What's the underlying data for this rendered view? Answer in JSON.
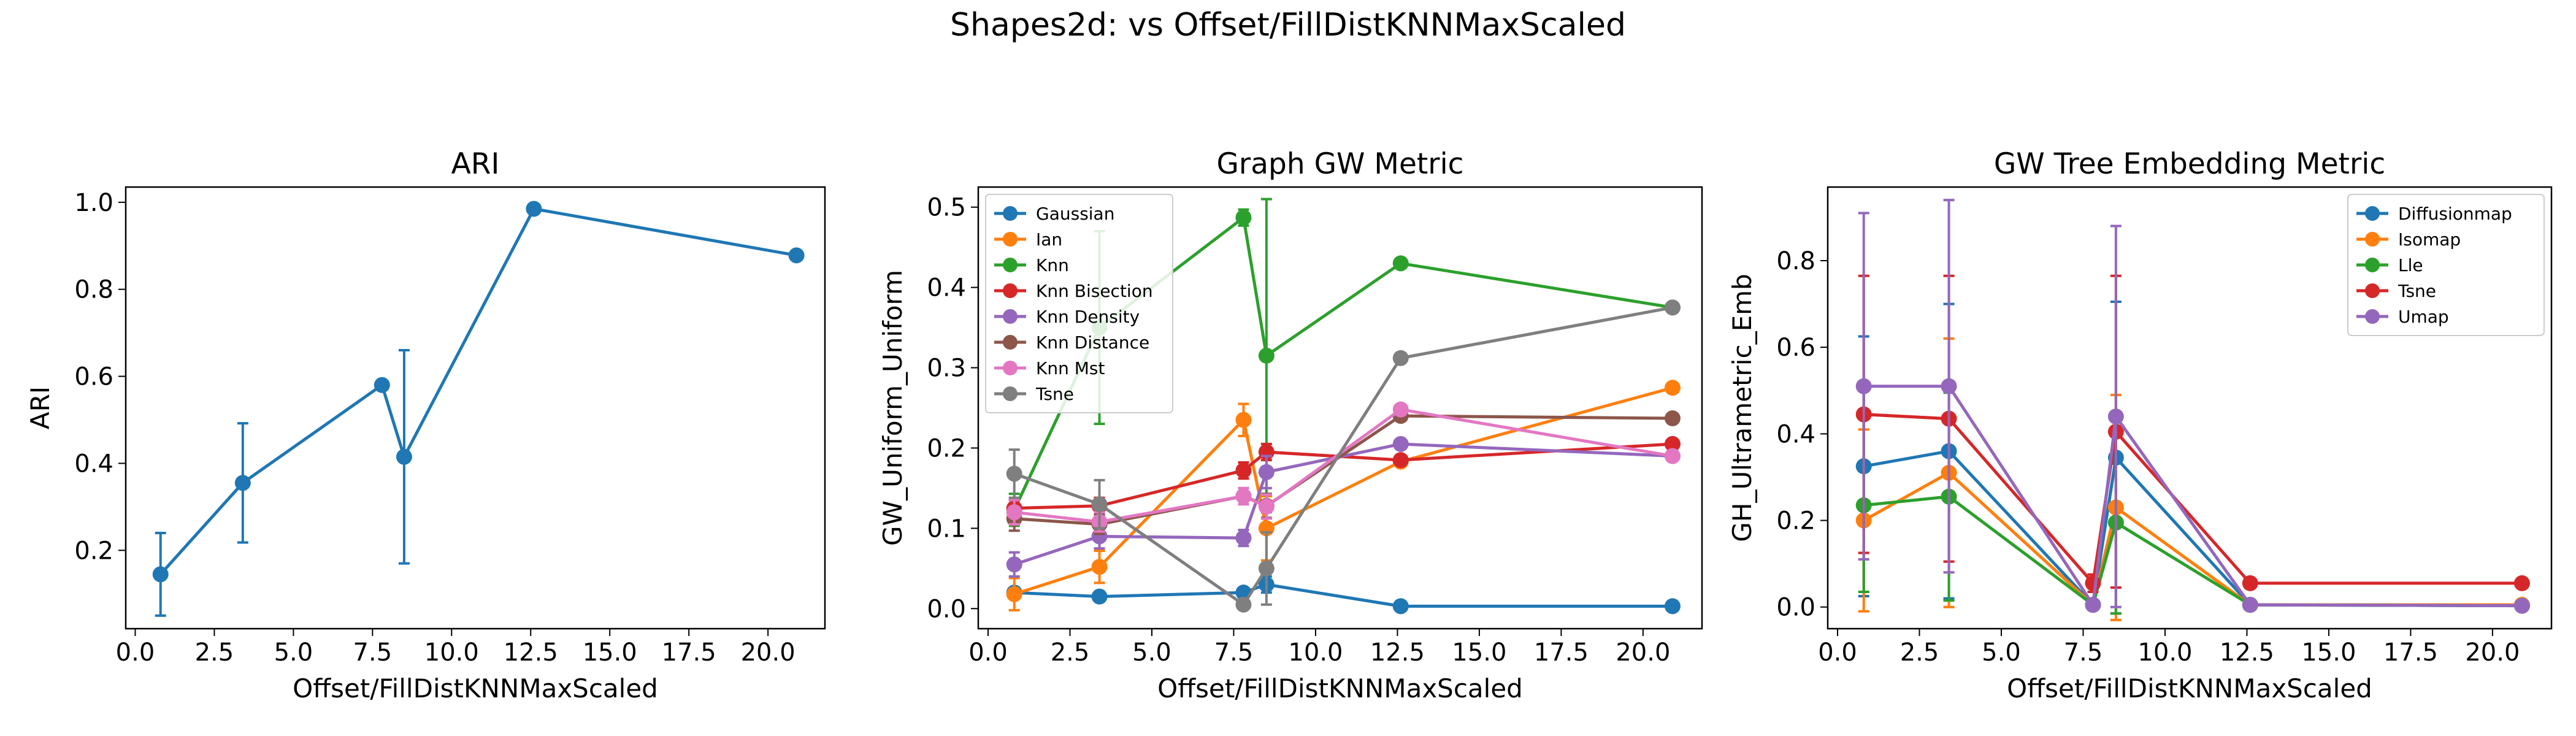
{
  "suptitle": "Shapes2d: vs Offset/FillDistKNNMaxScaled",
  "colors": {
    "blue": "#1f77b4",
    "orange": "#ff7f0e",
    "green": "#2ca02c",
    "red": "#d62728",
    "purple": "#9467bd",
    "brown": "#8c564b",
    "pink": "#e377c2",
    "gray": "#7f7f7f"
  },
  "chart_data": [
    {
      "type": "line",
      "title": "ARI",
      "xlabel": "Offset/FillDistKNNMaxScaled",
      "ylabel": "ARI",
      "xlim": [
        -0.3,
        21.8
      ],
      "ylim": [
        0.02,
        1.035
      ],
      "xticks": [
        0.0,
        2.5,
        5.0,
        7.5,
        10.0,
        12.5,
        15.0,
        17.5,
        20.0
      ],
      "xtick_labels": [
        "0.0",
        "2.5",
        "5.0",
        "7.5",
        "10.0",
        "12.5",
        "15.0",
        "17.5",
        "20.0"
      ],
      "yticks": [
        0.2,
        0.4,
        0.6,
        0.8,
        1.0
      ],
      "ytick_labels": [
        "0.2",
        "0.4",
        "0.6",
        "0.8",
        "1.0"
      ],
      "legend": null,
      "x": [
        0.8,
        3.4,
        7.8,
        8.5,
        12.6,
        20.9
      ],
      "series": [
        {
          "color": "blue",
          "values": [
            0.145,
            0.355,
            0.58,
            0.415,
            0.985,
            0.878
          ],
          "errors": [
            0.095,
            0.137,
            0,
            0.245,
            0,
            0
          ]
        }
      ]
    },
    {
      "type": "line",
      "title": "Graph GW Metric",
      "xlabel": "Offset/FillDistKNNMaxScaled",
      "ylabel": "GW_Uniform_Uniform",
      "xlim": [
        -0.3,
        21.8
      ],
      "ylim": [
        -0.025,
        0.525
      ],
      "xticks": [
        0.0,
        2.5,
        5.0,
        7.5,
        10.0,
        12.5,
        15.0,
        17.5,
        20.0
      ],
      "xtick_labels": [
        "0.0",
        "2.5",
        "5.0",
        "7.5",
        "10.0",
        "12.5",
        "15.0",
        "17.5",
        "20.0"
      ],
      "yticks": [
        0.0,
        0.1,
        0.2,
        0.3,
        0.4,
        0.5
      ],
      "ytick_labels": [
        "0.0",
        "0.1",
        "0.2",
        "0.3",
        "0.4",
        "0.5"
      ],
      "legend": "upper-left",
      "x": [
        0.8,
        3.4,
        7.8,
        8.5,
        12.6,
        20.9
      ],
      "series": [
        {
          "name": "Gaussian",
          "color": "blue",
          "values": [
            0.02,
            0.015,
            0.02,
            0.03,
            0.003,
            0.003
          ],
          "errors": [
            0.005,
            0.004,
            0.004,
            0.01,
            0,
            0
          ]
        },
        {
          "name": "Ian",
          "color": "orange",
          "values": [
            0.018,
            0.052,
            0.235,
            0.1,
            0.183,
            0.275
          ],
          "errors": [
            0.02,
            0.02,
            0.02,
            0.04,
            0.005,
            0
          ]
        },
        {
          "name": "Knn",
          "color": "green",
          "values": [
            0.123,
            0.35,
            0.487,
            0.315,
            0.43,
            0.375
          ],
          "errors": [
            0.02,
            0.12,
            0.01,
            0.195,
            0.005,
            0
          ]
        },
        {
          "name": "Knn Bisection",
          "color": "red",
          "values": [
            0.125,
            0.128,
            0.172,
            0.195,
            0.185,
            0.205
          ],
          "errors": [
            0.01,
            0.01,
            0.01,
            0.01,
            0.005,
            0
          ]
        },
        {
          "name": "Knn Density",
          "color": "purple",
          "values": [
            0.055,
            0.09,
            0.088,
            0.17,
            0.205,
            0.19
          ],
          "errors": [
            0.015,
            0.015,
            0.01,
            0.02,
            0.005,
            0
          ]
        },
        {
          "name": "Knn Distance",
          "color": "brown",
          "values": [
            0.112,
            0.105,
            0.14,
            0.128,
            0.24,
            0.237
          ],
          "errors": [
            0.015,
            0.012,
            0.01,
            0.015,
            0.005,
            0
          ]
        },
        {
          "name": "Knn Mst",
          "color": "pink",
          "values": [
            0.12,
            0.108,
            0.14,
            0.127,
            0.248,
            0.19
          ],
          "errors": [
            0.015,
            0.012,
            0.01,
            0.015,
            0.005,
            0
          ]
        },
        {
          "name": "Tsne",
          "color": "gray",
          "values": [
            0.168,
            0.13,
            0.005,
            0.05,
            0.312,
            0.375
          ],
          "errors": [
            0.03,
            0.03,
            0.005,
            0.045,
            0.005,
            0
          ]
        }
      ]
    },
    {
      "type": "line",
      "title": "GW Tree Embedding Metric",
      "xlabel": "Offset/FillDistKNNMaxScaled",
      "ylabel": "GH_Ultrametric_Emb",
      "xlim": [
        -0.3,
        21.8
      ],
      "ylim": [
        -0.05,
        0.97
      ],
      "xticks": [
        0.0,
        2.5,
        5.0,
        7.5,
        10.0,
        12.5,
        15.0,
        17.5,
        20.0
      ],
      "xtick_labels": [
        "0.0",
        "2.5",
        "5.0",
        "7.5",
        "10.0",
        "12.5",
        "15.0",
        "17.5",
        "20.0"
      ],
      "yticks": [
        0.0,
        0.2,
        0.4,
        0.6,
        0.8
      ],
      "ytick_labels": [
        "0.0",
        "0.2",
        "0.4",
        "0.6",
        "0.8"
      ],
      "legend": "upper-right",
      "x": [
        0.8,
        3.4,
        7.8,
        8.5,
        12.6,
        20.9
      ],
      "series": [
        {
          "name": "Diffusionmap",
          "color": "blue",
          "values": [
            0.325,
            0.36,
            0.005,
            0.345,
            0.005,
            0.003
          ],
          "errors": [
            0.3,
            0.34,
            0.01,
            0.36,
            0.003,
            0
          ]
        },
        {
          "name": "Isomap",
          "color": "orange",
          "values": [
            0.2,
            0.31,
            0.005,
            0.23,
            0.005,
            0.005
          ],
          "errors": [
            0.21,
            0.31,
            0.01,
            0.26,
            0.003,
            0
          ]
        },
        {
          "name": "Lle",
          "color": "green",
          "values": [
            0.235,
            0.255,
            0.005,
            0.195,
            0.005,
            0.003
          ],
          "errors": [
            0.2,
            0.24,
            0.01,
            0.21,
            0.003,
            0
          ]
        },
        {
          "name": "Tsne",
          "color": "red",
          "values": [
            0.445,
            0.435,
            0.055,
            0.405,
            0.055,
            0.055
          ],
          "errors": [
            0.32,
            0.33,
            0.02,
            0.36,
            0.003,
            0
          ]
        },
        {
          "name": "Umap",
          "color": "purple",
          "values": [
            0.51,
            0.51,
            0.005,
            0.44,
            0.005,
            0.003
          ],
          "errors": [
            0.4,
            0.43,
            0.01,
            0.44,
            0.003,
            0
          ]
        }
      ]
    }
  ]
}
